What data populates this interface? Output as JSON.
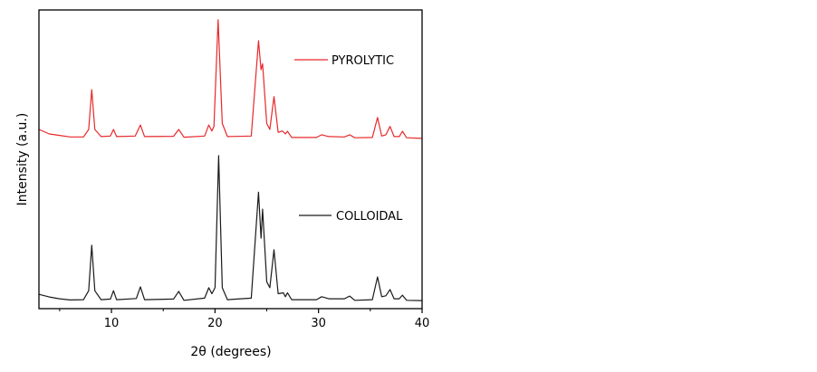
{
  "chart_data": {
    "type": "line",
    "title": "",
    "xlabel": "2θ (degrees)",
    "ylabel": "Intensity (a.u.)",
    "xlim": [
      3,
      40
    ],
    "ylim": [
      0,
      100
    ],
    "x_ticks": [
      10,
      20,
      30,
      40
    ],
    "x_minor_ticks": [
      5,
      15,
      25,
      35
    ],
    "y_ticks": [],
    "grid": false,
    "legend": "inline-right",
    "series": [
      {
        "name": "PYROLYTIC",
        "color": "#e8282b",
        "points": [
          [
            3,
            60
          ],
          [
            4,
            58.5
          ],
          [
            5,
            58
          ],
          [
            6,
            57.5
          ],
          [
            7.3,
            57.5
          ],
          [
            7.8,
            60
          ],
          [
            8.1,
            73.3
          ],
          [
            8.4,
            60
          ],
          [
            9,
            57.6
          ],
          [
            9.9,
            57.8
          ],
          [
            10.2,
            60
          ],
          [
            10.5,
            57.6
          ],
          [
            12.3,
            57.8
          ],
          [
            12.8,
            61.5
          ],
          [
            13.2,
            57.6
          ],
          [
            16,
            57.7
          ],
          [
            16.5,
            60
          ],
          [
            17,
            57.4
          ],
          [
            19,
            57.8
          ],
          [
            19.4,
            61.5
          ],
          [
            19.7,
            59.5
          ],
          [
            19.9,
            61
          ],
          [
            20.3,
            96.7
          ],
          [
            20.7,
            62
          ],
          [
            21.2,
            57.6
          ],
          [
            23.5,
            57.8
          ],
          [
            24.2,
            89.7
          ],
          [
            24.45,
            80
          ],
          [
            24.6,
            82
          ],
          [
            25.0,
            62
          ],
          [
            25.3,
            60
          ],
          [
            25.7,
            71
          ],
          [
            26.1,
            59
          ],
          [
            26.5,
            59.5
          ],
          [
            26.8,
            58.5
          ],
          [
            27.0,
            59.4
          ],
          [
            27.4,
            57.3
          ],
          [
            29.8,
            57.3
          ],
          [
            30.3,
            58.2
          ],
          [
            31,
            57.6
          ],
          [
            32.5,
            57.5
          ],
          [
            33.0,
            58.2
          ],
          [
            33.5,
            57.2
          ],
          [
            35.2,
            57.3
          ],
          [
            35.7,
            64
          ],
          [
            36.1,
            57.8
          ],
          [
            36.5,
            58.2
          ],
          [
            36.9,
            61
          ],
          [
            37.3,
            57.6
          ],
          [
            37.8,
            57.6
          ],
          [
            38.1,
            59.4
          ],
          [
            38.5,
            57.2
          ],
          [
            40,
            57
          ]
        ]
      },
      {
        "name": "COLLOIDAL",
        "color": "#1a1a1a",
        "points": [
          [
            3,
            4.8
          ],
          [
            4,
            3.9
          ],
          [
            5,
            3.3
          ],
          [
            6,
            2.9
          ],
          [
            7.3,
            3
          ],
          [
            7.8,
            6
          ],
          [
            8.1,
            21.2
          ],
          [
            8.4,
            6
          ],
          [
            9,
            3
          ],
          [
            9.9,
            3.2
          ],
          [
            10.2,
            6
          ],
          [
            10.5,
            3
          ],
          [
            12.4,
            3.4
          ],
          [
            12.8,
            7.3
          ],
          [
            13.2,
            3
          ],
          [
            16,
            3.2
          ],
          [
            16.5,
            5.8
          ],
          [
            17,
            2.8
          ],
          [
            19,
            3.5
          ],
          [
            19.4,
            7
          ],
          [
            19.7,
            5
          ],
          [
            20,
            7
          ],
          [
            20.35,
            51.2
          ],
          [
            20.7,
            7
          ],
          [
            21.2,
            3
          ],
          [
            23.5,
            3.5
          ],
          [
            24.2,
            39
          ],
          [
            24.45,
            23.6
          ],
          [
            24.6,
            33.3
          ],
          [
            25.0,
            9
          ],
          [
            25.3,
            7
          ],
          [
            25.7,
            19.7
          ],
          [
            26.1,
            5
          ],
          [
            26.6,
            5.3
          ],
          [
            26.8,
            4
          ],
          [
            27.0,
            5.3
          ],
          [
            27.4,
            3
          ],
          [
            29.8,
            3
          ],
          [
            30.3,
            4
          ],
          [
            31,
            3.3
          ],
          [
            32.5,
            3.3
          ],
          [
            33.0,
            4.2
          ],
          [
            33.5,
            2.8
          ],
          [
            35.2,
            3
          ],
          [
            35.7,
            10.6
          ],
          [
            36.1,
            4
          ],
          [
            36.5,
            4.3
          ],
          [
            36.9,
            6.4
          ],
          [
            37.3,
            3.3
          ],
          [
            37.8,
            3.3
          ],
          [
            38.1,
            4.5
          ],
          [
            38.5,
            2.8
          ],
          [
            40,
            2.7
          ]
        ]
      }
    ]
  }
}
